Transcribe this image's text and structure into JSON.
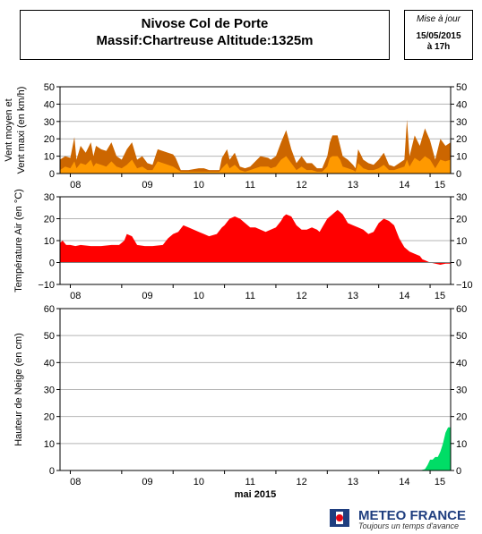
{
  "header": {
    "title_line1": "Nivose Col de Porte",
    "title_line2": "Massif:Chartreuse Altitude:1325m",
    "update_label": "Mise à jour",
    "update_date": "15/05/2015",
    "update_time": "à 17h"
  },
  "footer": {
    "brand": "METEO FRANCE",
    "tagline": "Toujours un temps d'avance",
    "brand_color": "#1f3e7f",
    "logo_accent": "#e30613"
  },
  "chart_data": [
    {
      "type": "area",
      "ylabel_line1": "Vent moyen et",
      "ylabel_line2": "Vent maxi (en km/h)",
      "ylim": [
        0,
        50
      ],
      "yticks": [
        0,
        10,
        20,
        30,
        40,
        50
      ],
      "grid": true,
      "x_unit": "days",
      "xlim": [
        7.8,
        15.4
      ],
      "xticks": [
        "08",
        "09",
        "10",
        "11",
        "12",
        "13",
        "14",
        "15"
      ],
      "series": [
        {
          "color": "#cc6600",
          "x": [
            7.8,
            7.9,
            8.0,
            8.08,
            8.12,
            8.2,
            8.3,
            8.4,
            8.45,
            8.5,
            8.6,
            8.7,
            8.8,
            8.9,
            9.0,
            9.1,
            9.2,
            9.3,
            9.4,
            9.5,
            9.6,
            9.7,
            9.9,
            10.0,
            10.05,
            10.15,
            10.3,
            10.5,
            10.6,
            10.7,
            10.9,
            10.95,
            11.05,
            11.1,
            11.2,
            11.3,
            11.4,
            11.5,
            11.6,
            11.7,
            11.85,
            11.9,
            12.0,
            12.1,
            12.2,
            12.3,
            12.4,
            12.5,
            12.6,
            12.7,
            12.8,
            12.9,
            13.0,
            13.05,
            13.1,
            13.2,
            13.25,
            13.3,
            13.4,
            13.5,
            13.55,
            13.6,
            13.7,
            13.8,
            13.9,
            14.0,
            14.1,
            14.2,
            14.3,
            14.4,
            14.5,
            14.55,
            14.6,
            14.7,
            14.8,
            14.9,
            15.0,
            15.1,
            15.2,
            15.3,
            15.4
          ],
          "values": [
            8,
            10,
            9,
            21,
            8,
            16,
            12,
            18,
            10,
            16,
            14,
            13,
            18,
            10,
            8,
            14,
            18,
            8,
            10,
            6,
            5,
            14,
            12,
            11,
            9,
            2,
            2,
            3,
            3,
            2,
            2,
            9,
            14,
            8,
            12,
            4,
            3,
            4,
            7,
            10,
            9,
            8,
            10,
            18,
            25,
            14,
            6,
            10,
            6,
            6,
            3,
            3,
            10,
            18,
            22,
            22,
            16,
            10,
            8,
            5,
            3,
            14,
            8,
            6,
            5,
            8,
            12,
            5,
            4,
            6,
            8,
            31,
            10,
            22,
            16,
            26,
            19,
            8,
            20,
            16,
            18
          ]
        },
        {
          "color": "#ff9900",
          "x": [
            7.8,
            7.9,
            8.0,
            8.08,
            8.12,
            8.2,
            8.3,
            8.4,
            8.45,
            8.5,
            8.6,
            8.7,
            8.8,
            8.9,
            9.0,
            9.1,
            9.2,
            9.3,
            9.4,
            9.5,
            9.6,
            9.7,
            9.9,
            10.0,
            10.05,
            10.15,
            10.3,
            10.5,
            10.6,
            10.7,
            10.9,
            10.95,
            11.05,
            11.1,
            11.2,
            11.3,
            11.4,
            11.5,
            11.6,
            11.7,
            11.85,
            11.9,
            12.0,
            12.1,
            12.2,
            12.3,
            12.4,
            12.5,
            12.6,
            12.7,
            12.8,
            12.9,
            13.0,
            13.05,
            13.1,
            13.2,
            13.25,
            13.3,
            13.4,
            13.5,
            13.55,
            13.6,
            13.7,
            13.8,
            13.9,
            14.0,
            14.1,
            14.2,
            14.3,
            14.4,
            14.5,
            14.55,
            14.6,
            14.7,
            14.8,
            14.9,
            15.0,
            15.1,
            15.2,
            15.3,
            15.4
          ],
          "values": [
            2,
            4,
            3,
            7,
            3,
            6,
            5,
            8,
            4,
            6,
            5,
            4,
            7,
            4,
            3,
            5,
            8,
            3,
            4,
            2,
            2,
            7,
            5,
            4,
            3,
            1,
            1,
            1,
            1,
            1,
            1,
            3,
            6,
            3,
            5,
            2,
            1,
            2,
            3,
            4,
            4,
            3,
            4,
            8,
            10,
            6,
            2,
            4,
            2,
            2,
            1,
            1,
            4,
            9,
            10,
            10,
            8,
            4,
            3,
            2,
            1,
            6,
            3,
            2,
            2,
            3,
            5,
            2,
            2,
            3,
            4,
            8,
            4,
            9,
            7,
            10,
            8,
            3,
            8,
            7,
            8
          ]
        }
      ]
    },
    {
      "type": "area",
      "ylabel": "Température Air (en °C)",
      "ylim": [
        -10,
        30
      ],
      "yticks": [
        -10,
        0,
        10,
        20,
        30
      ],
      "grid": true,
      "x_unit": "days",
      "xlim": [
        7.8,
        15.4
      ],
      "xticks": [
        "08",
        "09",
        "10",
        "11",
        "12",
        "13",
        "14",
        "15"
      ],
      "series": [
        {
          "color": "#ff0000",
          "x": [
            7.8,
            7.85,
            7.92,
            8.0,
            8.1,
            8.2,
            8.4,
            8.6,
            8.8,
            8.95,
            9.05,
            9.1,
            9.2,
            9.3,
            9.45,
            9.6,
            9.8,
            9.9,
            10.0,
            10.1,
            10.2,
            10.3,
            10.4,
            10.5,
            10.6,
            10.7,
            10.85,
            10.95,
            11.0,
            11.1,
            11.2,
            11.3,
            11.4,
            11.5,
            11.6,
            11.7,
            11.8,
            11.9,
            12.0,
            12.1,
            12.15,
            12.2,
            12.3,
            12.4,
            12.5,
            12.6,
            12.7,
            12.8,
            12.85,
            12.9,
            13.0,
            13.1,
            13.15,
            13.2,
            13.3,
            13.4,
            13.5,
            13.6,
            13.7,
            13.8,
            13.9,
            14.0,
            14.1,
            14.2,
            14.3,
            14.35,
            14.4,
            14.5,
            14.6,
            14.7,
            14.8,
            14.85,
            14.9,
            14.95,
            15.0,
            15.1,
            15.2,
            15.3,
            15.4
          ],
          "values": [
            9,
            10,
            8,
            8,
            7.5,
            8,
            7.5,
            7.5,
            8,
            8,
            10,
            13,
            12,
            8,
            7.5,
            7.5,
            8,
            11,
            13,
            14,
            17,
            16,
            15,
            14,
            13,
            12,
            13,
            16,
            17,
            20,
            21,
            20,
            18,
            16,
            16,
            15,
            14,
            15,
            16,
            19,
            21,
            22,
            21,
            17,
            15,
            15,
            16,
            15,
            14,
            16,
            20,
            22,
            23,
            24,
            22,
            18,
            17,
            16,
            15,
            13,
            14,
            18,
            20,
            19,
            17,
            14,
            11,
            7,
            5,
            4,
            3,
            1.5,
            1,
            0.5,
            0,
            -0.5,
            -1,
            -0.5,
            -0.5
          ]
        }
      ]
    },
    {
      "type": "area",
      "ylabel": "Hauteur de Neige (en cm)",
      "ylim": [
        0,
        60
      ],
      "yticks": [
        0,
        10,
        20,
        30,
        40,
        50,
        60
      ],
      "grid": true,
      "x_unit": "days",
      "xlim": [
        7.8,
        15.4
      ],
      "xlabel": "mai 2015",
      "xticks": [
        "08",
        "09",
        "10",
        "11",
        "12",
        "13",
        "14",
        "15"
      ],
      "series": [
        {
          "color": "#00dd66",
          "x": [
            7.8,
            14.8,
            14.9,
            14.95,
            15.0,
            15.05,
            15.1,
            15.15,
            15.2,
            15.25,
            15.3,
            15.35,
            15.4
          ],
          "values": [
            0,
            0,
            0.5,
            2,
            4,
            4,
            5,
            5,
            7,
            10,
            14,
            16,
            16
          ]
        }
      ]
    }
  ]
}
